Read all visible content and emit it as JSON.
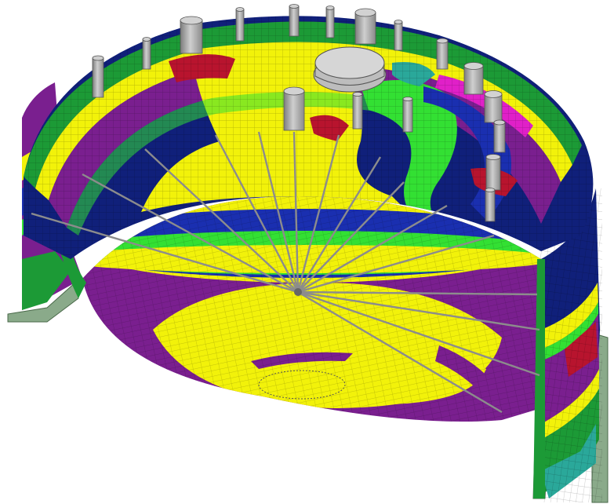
{
  "figure": {
    "subject": "finite-element-tank-contour",
    "colors": {
      "background": "#ffffff",
      "purple": "#7a1f8f",
      "yellow": "#f2f20a",
      "lime": "#33e033",
      "green": "#1c9a36",
      "dark_green": "#2e6e3a",
      "blue": "#1a2fb0",
      "dark_blue": "#10207a",
      "teal": "#2aa89a",
      "red": "#b8142e",
      "magenta": "#e020c8",
      "mesh": "#5a5a5a",
      "cylinder": "#a8a8a8",
      "cylinder_dark": "#7d7d7d",
      "cylinder_light": "#d2d2d2",
      "support_light": "#8aaa8a"
    },
    "parts": [
      "cylindrical-shell-wall",
      "dome-roof",
      "radial-stay-rods",
      "roof-nozzles",
      "manway-hatch",
      "support-legs"
    ]
  }
}
